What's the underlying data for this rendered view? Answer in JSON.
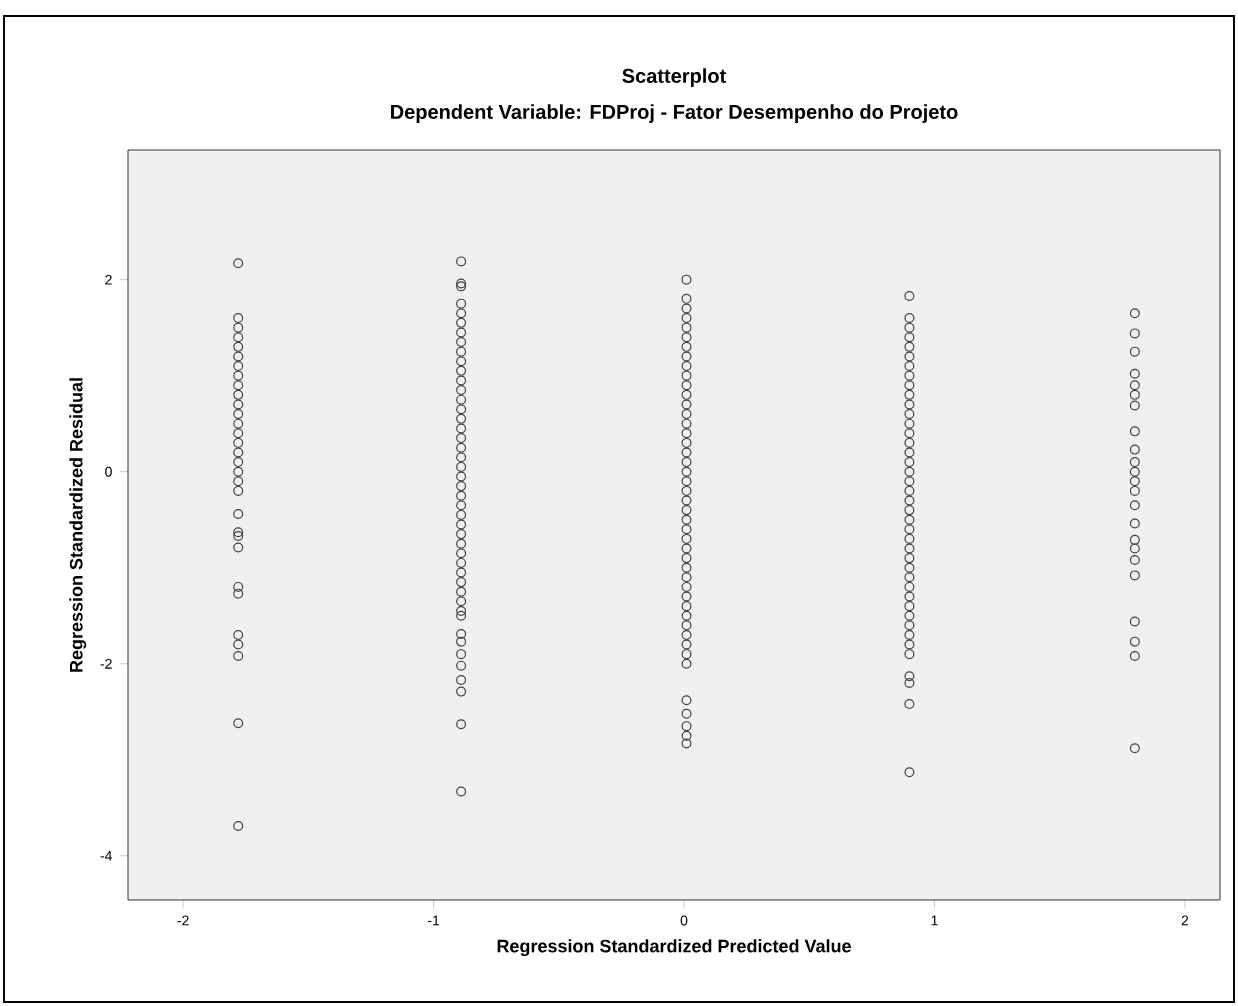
{
  "chart_data": {
    "type": "scatter",
    "title": "Scatterplot",
    "subtitle": "Dependent Variable: FDProj - Fator Desempenho do Projeto",
    "xlabel": "Regression Standardized Predicted Value",
    "ylabel": "Regression Standardized Residual",
    "xlim": [
      -2.22,
      2.14
    ],
    "ylim": [
      -4.46,
      3.35
    ],
    "xticks": [
      -2,
      -1,
      0,
      1,
      2
    ],
    "yticks": [
      -4,
      -2,
      0,
      2
    ],
    "marker": "circle",
    "series": [
      {
        "color": "#404040",
        "x": [
          -1.78,
          -1.78,
          -1.78,
          -1.78,
          -1.78,
          -1.78,
          -1.78,
          -1.78,
          -1.78,
          -1.78,
          -1.78,
          -1.78,
          -1.78,
          -1.78,
          -1.78,
          -1.78,
          -1.78,
          -1.78,
          -1.78,
          -1.78,
          -1.78,
          -1.78,
          -1.78,
          -1.78,
          -1.78,
          -1.78,
          -1.78,
          -1.78,
          -1.78,
          -1.78,
          -1.78
        ],
        "values": [
          2.17,
          1.6,
          1.5,
          1.4,
          1.3,
          1.2,
          1.1,
          1.0,
          0.9,
          0.8,
          0.7,
          0.6,
          0.5,
          0.4,
          0.3,
          0.2,
          0.1,
          0.0,
          -0.1,
          -0.2,
          -0.44,
          -0.63,
          -0.67,
          -0.79,
          -1.2,
          -1.27,
          -1.7,
          -1.8,
          -1.92,
          -2.62,
          -3.69
        ]
      },
      {
        "color": "#404040",
        "x": [
          -0.89,
          -0.89,
          -0.89,
          -0.89,
          -0.89,
          -0.89,
          -0.89,
          -0.89,
          -0.89,
          -0.89,
          -0.89,
          -0.89,
          -0.89,
          -0.89,
          -0.89,
          -0.89,
          -0.89,
          -0.89,
          -0.89,
          -0.89,
          -0.89,
          -0.89,
          -0.89,
          -0.89,
          -0.89,
          -0.89,
          -0.89,
          -0.89,
          -0.89,
          -0.89,
          -0.89,
          -0.89,
          -0.89,
          -0.89,
          -0.89,
          -0.89,
          -0.89,
          -0.89,
          -0.89,
          -0.89,
          -0.89,
          -0.89,
          -0.89,
          -0.89,
          -0.89
        ],
        "values": [
          2.19,
          1.96,
          1.93,
          1.75,
          1.65,
          1.55,
          1.45,
          1.35,
          1.25,
          1.15,
          1.05,
          0.95,
          0.85,
          0.75,
          0.65,
          0.55,
          0.45,
          0.35,
          0.25,
          0.15,
          0.05,
          -0.05,
          -0.15,
          -0.25,
          -0.35,
          -0.45,
          -0.55,
          -0.65,
          -0.75,
          -0.85,
          -0.95,
          -1.05,
          -1.15,
          -1.25,
          -1.35,
          -1.45,
          -1.5,
          -1.69,
          -1.77,
          -1.9,
          -2.02,
          -2.17,
          -2.29,
          -2.63,
          -3.33
        ]
      },
      {
        "color": "#404040",
        "x": [
          0.01,
          0.01,
          0.01,
          0.01,
          0.01,
          0.01,
          0.01,
          0.01,
          0.01,
          0.01,
          0.01,
          0.01,
          0.01,
          0.01,
          0.01,
          0.01,
          0.01,
          0.01,
          0.01,
          0.01,
          0.01,
          0.01,
          0.01,
          0.01,
          0.01,
          0.01,
          0.01,
          0.01,
          0.01,
          0.01,
          0.01,
          0.01,
          0.01,
          0.01,
          0.01,
          0.01,
          0.01,
          0.01,
          0.01,
          0.01,
          0.01,
          0.01,
          0.01,
          0.01,
          0.01
        ],
        "values": [
          2.0,
          1.8,
          1.7,
          1.6,
          1.5,
          1.4,
          1.3,
          1.2,
          1.1,
          1.0,
          0.9,
          0.8,
          0.7,
          0.6,
          0.5,
          0.4,
          0.3,
          0.2,
          0.1,
          0.0,
          -0.1,
          -0.2,
          -0.3,
          -0.4,
          -0.5,
          -0.6,
          -0.7,
          -0.8,
          -0.9,
          -1.0,
          -1.1,
          -1.2,
          -1.3,
          -1.4,
          -1.5,
          -1.6,
          -1.7,
          -1.8,
          -1.9,
          -2.0,
          -2.38,
          -2.52,
          -2.65,
          -2.75,
          -2.83
        ]
      },
      {
        "color": "#404040",
        "x": [
          0.9,
          0.9,
          0.9,
          0.9,
          0.9,
          0.9,
          0.9,
          0.9,
          0.9,
          0.9,
          0.9,
          0.9,
          0.9,
          0.9,
          0.9,
          0.9,
          0.9,
          0.9,
          0.9,
          0.9,
          0.9,
          0.9,
          0.9,
          0.9,
          0.9,
          0.9,
          0.9,
          0.9,
          0.9,
          0.9,
          0.9,
          0.9,
          0.9,
          0.9,
          0.9,
          0.9,
          0.9,
          0.9,
          0.9,
          0.9,
          0.9
        ],
        "values": [
          1.83,
          1.6,
          1.5,
          1.4,
          1.3,
          1.2,
          1.1,
          1.0,
          0.9,
          0.8,
          0.7,
          0.6,
          0.5,
          0.4,
          0.3,
          0.2,
          0.1,
          0.0,
          -0.1,
          -0.2,
          -0.3,
          -0.4,
          -0.5,
          -0.6,
          -0.7,
          -0.8,
          -0.9,
          -1.0,
          -1.1,
          -1.2,
          -1.3,
          -1.4,
          -1.5,
          -1.6,
          -1.7,
          -1.8,
          -1.9,
          -2.13,
          -2.2,
          -2.42,
          -3.13
        ]
      },
      {
        "color": "#404040",
        "x": [
          1.8,
          1.8,
          1.8,
          1.8,
          1.8,
          1.8,
          1.8,
          1.8,
          1.8,
          1.8,
          1.8,
          1.8,
          1.8,
          1.8,
          1.8,
          1.8,
          1.8,
          1.8,
          1.8,
          1.8,
          1.8,
          1.8,
          1.8
        ],
        "values": [
          1.65,
          1.44,
          1.25,
          1.02,
          0.9,
          0.8,
          0.69,
          0.42,
          0.23,
          0.1,
          0.0,
          -0.1,
          -0.2,
          -0.35,
          -0.54,
          -0.71,
          -0.8,
          -0.92,
          -1.08,
          -1.56,
          -1.77,
          -1.92,
          -2.88
        ]
      }
    ]
  }
}
